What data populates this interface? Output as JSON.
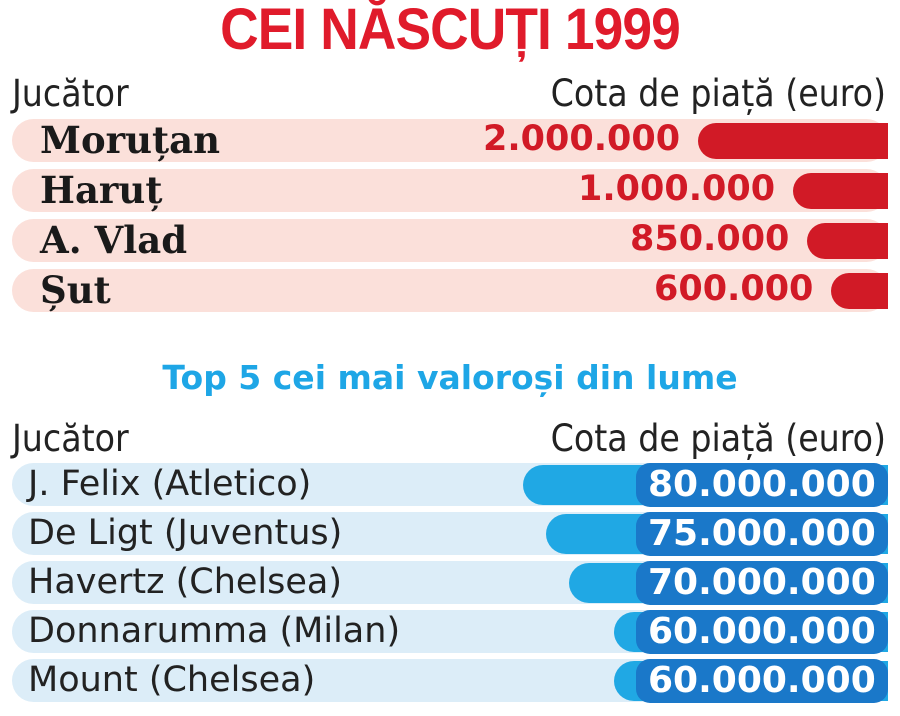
{
  "chart_data": [
    {
      "type": "bar",
      "title": "CEI NĂSCUȚI 1999",
      "category_header": "Jucător",
      "value_header": "Cota de piață (euro)",
      "categories": [
        "Moruțan",
        "Haruț",
        "A. Vlad",
        "Șut"
      ],
      "values": [
        2000000,
        1000000,
        850000,
        600000
      ],
      "value_labels": [
        "2.000.000",
        "1.000.000",
        "850.000",
        "600.000"
      ],
      "colors": {
        "bar": "#d11a26",
        "row": "#fbe0da",
        "title": "#e01b2b"
      }
    },
    {
      "type": "bar",
      "title": "Top 5 cei mai valoroși din lume",
      "category_header": "Jucător",
      "value_header": "Cota de piață (euro)",
      "categories": [
        "J. Felix (Atletico)",
        "De Ligt (Juventus)",
        "Havertz (Chelsea)",
        "Donnarumma (Milan)",
        "Mount (Chelsea)"
      ],
      "values": [
        80000000,
        75000000,
        70000000,
        60000000,
        60000000
      ],
      "value_labels": [
        "80.000.000",
        "75.000.000",
        "70.000.000",
        "60.000.000",
        "60.000.000"
      ],
      "colors": {
        "bar": "#20a8e4",
        "label_bg": "#1a78c9",
        "row": "#dcedf8",
        "title": "#1ea6e6"
      }
    }
  ]
}
